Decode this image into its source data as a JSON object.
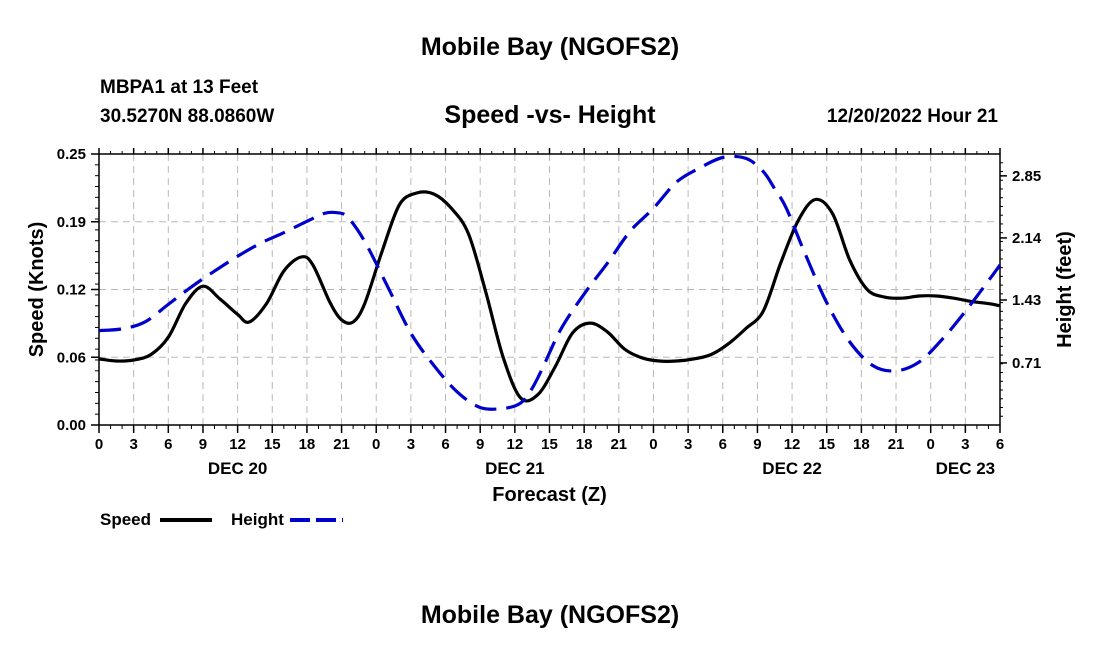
{
  "chart_data": {
    "type": "line",
    "title": "Mobile Bay (NGOFS2)",
    "subtitle": "Speed -vs- Height",
    "station": "MBPA1 at 13 Feet",
    "coordinates": "30.5270N  88.0860W",
    "datetime": "12/20/2022 Hour 21",
    "xlabel": "Forecast (Z)",
    "ylabel_left": "Speed (Knots)",
    "ylabel_right": "Height (feet)",
    "x_range_hours": [
      0,
      78
    ],
    "ylim_left": [
      0,
      0.25
    ],
    "ylim_right": [
      0,
      3.1
    ],
    "x_ticks": [
      "0",
      "3",
      "6",
      "9",
      "12",
      "15",
      "18",
      "21",
      "0",
      "3",
      "6",
      "9",
      "12",
      "15",
      "18",
      "21",
      "0",
      "3",
      "6",
      "9",
      "12",
      "15",
      "18",
      "21",
      "0",
      "3",
      "6"
    ],
    "day_labels": [
      {
        "label": "DEC 20",
        "hour": 12
      },
      {
        "label": "DEC 21",
        "hour": 36
      },
      {
        "label": "DEC 22",
        "hour": 60
      },
      {
        "label": "DEC 23",
        "hour": 75
      }
    ],
    "y_ticks_left": [
      "0.00",
      "0.06",
      "0.12",
      "0.19",
      "0.25"
    ],
    "y_tick_values_left": [
      0,
      0.0625,
      0.125,
      0.1875,
      0.25
    ],
    "y_ticks_right": [
      "0.71",
      "1.43",
      "2.14",
      "2.85"
    ],
    "y_tick_values_right": [
      0.71,
      1.43,
      2.14,
      2.85
    ],
    "grid": true,
    "series": [
      {
        "name": "Speed",
        "axis": "left",
        "color": "#000000",
        "dash": "solid",
        "x": [
          0,
          1.5,
          3,
          4.5,
          6,
          7.5,
          9,
          10.5,
          12,
          13,
          14.5,
          16,
          17.5,
          18.5,
          20,
          21,
          22,
          23,
          24.5,
          26,
          27.5,
          29,
          30.5,
          32,
          33.5,
          35,
          36.5,
          38,
          39.5,
          41,
          42.5,
          44,
          45.5,
          47,
          48.5,
          50,
          51.5,
          53,
          54.5,
          56,
          57.5,
          59,
          60.5,
          62,
          63.5,
          65,
          66.5,
          68,
          69.5,
          71,
          72.5,
          74,
          75.5,
          77,
          78
        ],
        "values": [
          0.061,
          0.059,
          0.06,
          0.065,
          0.081,
          0.112,
          0.128,
          0.116,
          0.102,
          0.095,
          0.112,
          0.142,
          0.155,
          0.148,
          0.113,
          0.097,
          0.095,
          0.112,
          0.16,
          0.203,
          0.214,
          0.213,
          0.2,
          0.176,
          0.122,
          0.062,
          0.025,
          0.028,
          0.054,
          0.085,
          0.094,
          0.086,
          0.07,
          0.062,
          0.059,
          0.059,
          0.061,
          0.065,
          0.075,
          0.089,
          0.105,
          0.149,
          0.188,
          0.208,
          0.195,
          0.152,
          0.125,
          0.118,
          0.117,
          0.119,
          0.119,
          0.117,
          0.114,
          0.112,
          0.11
        ]
      },
      {
        "name": "Height",
        "axis": "right",
        "color": "#0000cc",
        "dash": "dashed",
        "x": [
          0,
          2,
          4,
          6,
          8,
          10,
          12,
          14,
          16,
          18,
          19.5,
          20.5,
          21.5,
          23,
          25,
          27,
          29,
          31,
          33,
          35,
          36.5,
          37.5,
          38.5,
          40,
          42,
          44,
          46,
          48,
          50,
          52,
          54,
          56,
          57.5,
          58.5,
          59.5,
          61,
          63,
          65,
          67,
          69,
          71,
          73,
          75,
          77,
          78
        ],
        "values": [
          1.08,
          1.1,
          1.18,
          1.38,
          1.58,
          1.76,
          1.93,
          2.08,
          2.2,
          2.33,
          2.42,
          2.43,
          2.38,
          2.1,
          1.58,
          1.05,
          0.68,
          0.38,
          0.2,
          0.19,
          0.25,
          0.42,
          0.68,
          1.1,
          1.5,
          1.85,
          2.22,
          2.48,
          2.78,
          2.94,
          3.06,
          3.05,
          2.9,
          2.7,
          2.48,
          2.0,
          1.4,
          0.95,
          0.68,
          0.62,
          0.72,
          0.98,
          1.3,
          1.65,
          1.83
        ]
      }
    ],
    "legend": {
      "position": "bottom-left",
      "items": [
        {
          "label": "Speed",
          "color": "#000000",
          "dash": "solid"
        },
        {
          "label": "Height",
          "color": "#0000cc",
          "dash": "dashed"
        }
      ]
    }
  },
  "footer_title": "Mobile Bay (NGOFS2)"
}
